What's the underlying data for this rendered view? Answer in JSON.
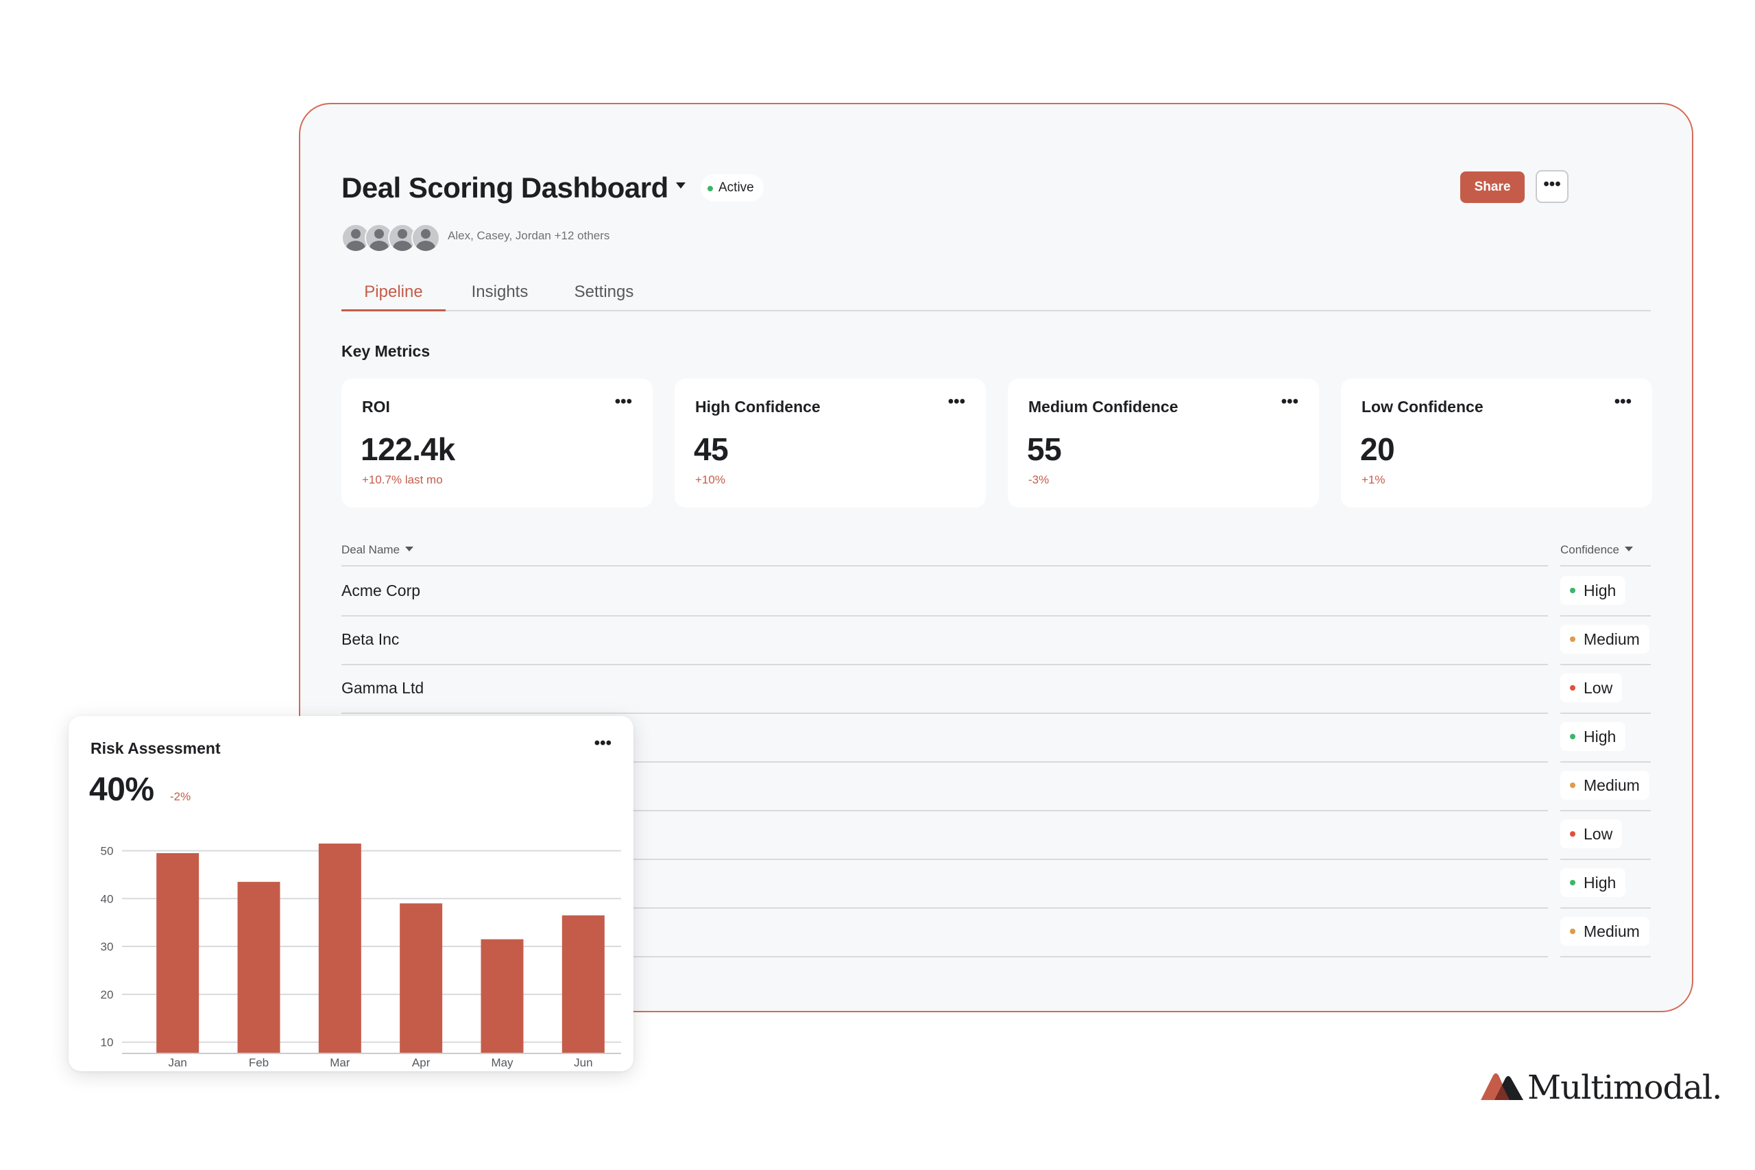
{
  "header": {
    "title": "Deal Scoring Dashboard",
    "status": "Active",
    "share_label": "Share",
    "more_label": "•••"
  },
  "collaborators": {
    "text": "Alex, Casey, Jordan +12 others"
  },
  "tabs": [
    {
      "label": "Pipeline",
      "active": true
    },
    {
      "label": "Insights",
      "active": false
    },
    {
      "label": "Settings",
      "active": false
    }
  ],
  "key_metrics": {
    "title": "Key Metrics",
    "cards": [
      {
        "label": "ROI",
        "value": "122.4k",
        "delta": "+10.7% last mo"
      },
      {
        "label": "High Confidence",
        "value": "45",
        "delta": "+10%"
      },
      {
        "label": "Medium Confidence",
        "value": "55",
        "delta": "-3%"
      },
      {
        "label": "Low Confidence",
        "value": "20",
        "delta": "+1%"
      }
    ]
  },
  "table": {
    "columns": {
      "name": "Deal Name",
      "confidence": "Confidence"
    },
    "rows": [
      {
        "name": "Acme Corp",
        "confidence": "High"
      },
      {
        "name": "Beta Inc",
        "confidence": "Medium"
      },
      {
        "name": "Gamma Ltd",
        "confidence": "Low"
      },
      {
        "name": "",
        "confidence": "High"
      },
      {
        "name": "",
        "confidence": "Medium"
      },
      {
        "name": "",
        "confidence": "Low"
      },
      {
        "name": "",
        "confidence": "High"
      },
      {
        "name": "",
        "confidence": "Medium"
      }
    ]
  },
  "colors": {
    "accent": "#c55c4a",
    "high": "#3bb56a",
    "medium": "#e09a4a",
    "low": "#e0503a",
    "bar": "#c55c4a"
  },
  "risk_card": {
    "title": "Risk Assessment",
    "value": "40%",
    "delta": "-2%"
  },
  "chart_data": {
    "type": "bar",
    "title": "Risk Assessment",
    "categories": [
      "Jan",
      "Feb",
      "Mar",
      "Apr",
      "May",
      "Jun"
    ],
    "values": [
      49.5,
      43.5,
      51.5,
      39,
      31.5,
      36.5
    ],
    "yticks": [
      10,
      20,
      30,
      40,
      50
    ],
    "ylim": [
      8.8,
      51.5
    ],
    "xlabel": "",
    "ylabel": "",
    "grid": true
  },
  "brand": {
    "name": "Multimodal."
  }
}
